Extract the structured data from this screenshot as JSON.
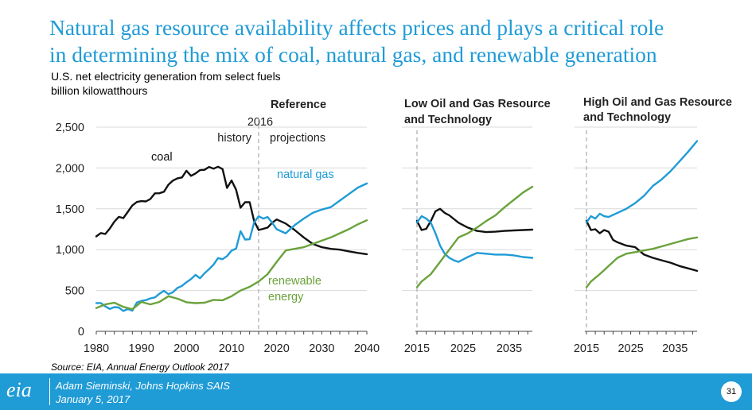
{
  "title": {
    "line1": "Natural gas resource availability affects prices and plays a critical role",
    "line2": "in determining the mix of coal, natural gas, and renewable generation"
  },
  "subtitle": {
    "line1": "U.S. net electricity generation from select fuels",
    "line2": "billion kilowatthours"
  },
  "source": "Source: EIA, Annual Energy Outlook 2017",
  "footer": {
    "logo": "eia",
    "author": "Adam Sieminski, Johns Hopkins SAIS",
    "date": "January 5, 2017",
    "page": "31"
  },
  "colors": {
    "coal": "#111111",
    "natural_gas": "#1f9bd6",
    "renewable": "#6aa23b",
    "title": "#1f9bd6"
  },
  "chart_data": [
    {
      "type": "line",
      "panel": "reference",
      "title": "Reference",
      "ylim": [
        0,
        2500
      ],
      "yticks": [
        "0",
        "500",
        "1,000",
        "1,500",
        "2,000",
        "2,500"
      ],
      "ytick_values": [
        0,
        500,
        1000,
        1500,
        2000,
        2500
      ],
      "xlim": [
        1980,
        2040
      ],
      "xticks": [
        "1980",
        "1990",
        "2000",
        "2010",
        "2020",
        "2030",
        "2040"
      ],
      "xtick_values": [
        1980,
        1990,
        2000,
        2010,
        2020,
        2030,
        2040
      ],
      "divider": {
        "year": 2016,
        "label": "2016",
        "left_label": "history",
        "right_label": "projections"
      },
      "series": [
        {
          "name": "coal",
          "label": "coal",
          "color": "#111111",
          "x": [
            1980,
            1981,
            1982,
            1983,
            1984,
            1985,
            1986,
            1987,
            1988,
            1989,
            1990,
            1991,
            1992,
            1993,
            1994,
            1995,
            1996,
            1997,
            1998,
            1999,
            2000,
            2001,
            2002,
            2003,
            2004,
            2005,
            2006,
            2007,
            2008,
            2009,
            2010,
            2011,
            2012,
            2013,
            2014,
            2015,
            2016,
            2017,
            2018,
            2019,
            2020,
            2022,
            2024,
            2026,
            2028,
            2030,
            2032,
            2034,
            2036,
            2038,
            2040
          ],
          "values": [
            1162,
            1203,
            1192,
            1259,
            1342,
            1402,
            1386,
            1464,
            1541,
            1584,
            1594,
            1590,
            1621,
            1690,
            1691,
            1709,
            1796,
            1845,
            1874,
            1884,
            1966,
            1904,
            1933,
            1974,
            1978,
            2013,
            1991,
            2016,
            1986,
            1756,
            1847,
            1733,
            1514,
            1581,
            1582,
            1352,
            1240,
            1255,
            1270,
            1330,
            1370,
            1320,
            1240,
            1150,
            1070,
            1030,
            1010,
            1000,
            980,
            960,
            945
          ]
        },
        {
          "name": "natural_gas",
          "label": "natural gas",
          "color": "#1f9bd6",
          "x": [
            1980,
            1981,
            1982,
            1983,
            1984,
            1985,
            1986,
            1987,
            1988,
            1989,
            1990,
            1991,
            1992,
            1993,
            1994,
            1995,
            1996,
            1997,
            1998,
            1999,
            2000,
            2001,
            2002,
            2003,
            2004,
            2005,
            2006,
            2007,
            2008,
            2009,
            2010,
            2011,
            2012,
            2013,
            2014,
            2015,
            2016,
            2017,
            2018,
            2019,
            2020,
            2022,
            2024,
            2026,
            2028,
            2030,
            2032,
            2034,
            2036,
            2038,
            2040
          ],
          "values": [
            346,
            346,
            305,
            274,
            297,
            292,
            249,
            273,
            253,
            352,
            373,
            382,
            404,
            415,
            460,
            496,
            455,
            479,
            531,
            556,
            601,
            639,
            691,
            650,
            710,
            761,
            816,
            897,
            883,
            921,
            988,
            1013,
            1226,
            1124,
            1127,
            1333,
            1410,
            1380,
            1400,
            1330,
            1250,
            1200,
            1300,
            1380,
            1450,
            1490,
            1520,
            1600,
            1680,
            1760,
            1810
          ]
        },
        {
          "name": "renewable",
          "label": "renewable energy",
          "color": "#6aa23b",
          "x": [
            1980,
            1982,
            1984,
            1986,
            1988,
            1990,
            1992,
            1994,
            1996,
            1998,
            2000,
            2002,
            2004,
            2006,
            2008,
            2010,
            2012,
            2014,
            2016,
            2018,
            2020,
            2022,
            2024,
            2026,
            2028,
            2030,
            2032,
            2034,
            2036,
            2038,
            2040
          ],
          "values": [
            285,
            330,
            350,
            300,
            270,
            360,
            330,
            360,
            430,
            400,
            356,
            345,
            350,
            385,
            380,
            430,
            500,
            545,
            610,
            700,
            850,
            990,
            1010,
            1030,
            1070,
            1110,
            1150,
            1200,
            1250,
            1310,
            1360
          ]
        }
      ]
    },
    {
      "type": "line",
      "panel": "low_resource",
      "title": "Low Oil and Gas Resource and Technology",
      "ylim": [
        0,
        2500
      ],
      "xlim": [
        2015,
        2040
      ],
      "xticks": [
        "2015",
        "2025",
        "2035"
      ],
      "xtick_values": [
        2015,
        2025,
        2035
      ],
      "series": [
        {
          "name": "coal",
          "color": "#111111",
          "x": [
            2015,
            2016,
            2017,
            2018,
            2019,
            2020,
            2021,
            2022,
            2024,
            2026,
            2028,
            2030,
            2032,
            2034,
            2036,
            2038,
            2040
          ],
          "values": [
            1352,
            1240,
            1255,
            1350,
            1470,
            1500,
            1450,
            1420,
            1330,
            1270,
            1230,
            1215,
            1220,
            1230,
            1235,
            1240,
            1245
          ]
        },
        {
          "name": "natural_gas",
          "color": "#1f9bd6",
          "x": [
            2015,
            2016,
            2017,
            2018,
            2019,
            2020,
            2021,
            2022,
            2023,
            2024,
            2025,
            2026,
            2028,
            2030,
            2032,
            2034,
            2036,
            2038,
            2040
          ],
          "values": [
            1333,
            1410,
            1380,
            1330,
            1200,
            1050,
            950,
            900,
            870,
            850,
            880,
            910,
            960,
            950,
            940,
            940,
            930,
            910,
            900
          ]
        },
        {
          "name": "renewable",
          "color": "#6aa23b",
          "x": [
            2015,
            2016,
            2018,
            2020,
            2022,
            2024,
            2026,
            2028,
            2030,
            2032,
            2034,
            2036,
            2038,
            2040
          ],
          "values": [
            540,
            610,
            700,
            850,
            1000,
            1150,
            1200,
            1270,
            1350,
            1420,
            1520,
            1610,
            1700,
            1770
          ]
        }
      ]
    },
    {
      "type": "line",
      "panel": "high_resource",
      "title": "High Oil and Gas Resource and Technology",
      "ylim": [
        0,
        2500
      ],
      "xlim": [
        2015,
        2040
      ],
      "xticks": [
        "2015",
        "2025",
        "2035"
      ],
      "xtick_values": [
        2015,
        2025,
        2035
      ],
      "series": [
        {
          "name": "coal",
          "color": "#111111",
          "x": [
            2015,
            2016,
            2017,
            2018,
            2019,
            2020,
            2021,
            2022,
            2024,
            2026,
            2028,
            2030,
            2032,
            2034,
            2036,
            2038,
            2040
          ],
          "values": [
            1352,
            1240,
            1250,
            1200,
            1240,
            1220,
            1120,
            1090,
            1050,
            1030,
            940,
            900,
            870,
            840,
            800,
            770,
            740
          ]
        },
        {
          "name": "natural_gas",
          "color": "#1f9bd6",
          "x": [
            2015,
            2016,
            2017,
            2018,
            2019,
            2020,
            2022,
            2024,
            2026,
            2028,
            2030,
            2032,
            2034,
            2036,
            2038,
            2040
          ],
          "values": [
            1333,
            1410,
            1380,
            1440,
            1410,
            1400,
            1450,
            1500,
            1570,
            1660,
            1780,
            1860,
            1960,
            2080,
            2200,
            2330
          ]
        },
        {
          "name": "renewable",
          "color": "#6aa23b",
          "x": [
            2015,
            2016,
            2018,
            2020,
            2022,
            2024,
            2026,
            2028,
            2030,
            2032,
            2034,
            2036,
            2038,
            2040
          ],
          "values": [
            540,
            610,
            700,
            800,
            900,
            950,
            970,
            990,
            1010,
            1040,
            1070,
            1100,
            1130,
            1150
          ]
        }
      ]
    }
  ],
  "annotations": {
    "coal": "coal",
    "natural_gas": "natural gas",
    "renewable_line1": "renewable",
    "renewable_line2": "energy"
  },
  "panel_titles": {
    "reference": "Reference",
    "low_line1": "Low Oil and Gas Resource",
    "low_line2": "and Technology",
    "high_line1": "High Oil and Gas Resource",
    "high_line2": "and Technology"
  }
}
